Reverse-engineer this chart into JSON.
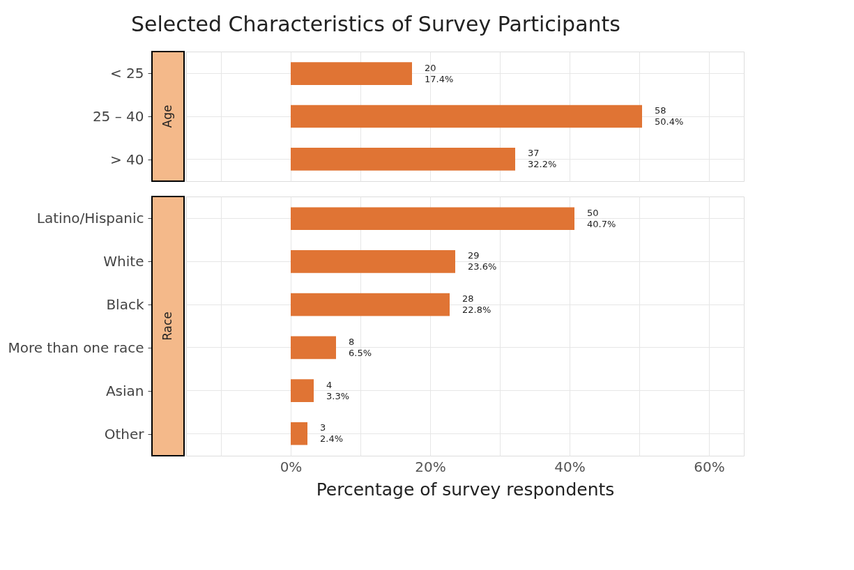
{
  "chart_data": [
    {
      "type": "bar",
      "orientation": "horizontal",
      "title": "Selected Characteristics of Survey Participants",
      "ylabel": "Age",
      "categories": [
        "< 25",
        "25 – 40",
        "> 40"
      ],
      "values": [
        17.4,
        50.4,
        32.2
      ],
      "color": "#e07434",
      "value_labels": [
        "20\n17.4%",
        "58\n50.4%",
        "37\n32.2%"
      ],
      "xlim": [
        -15,
        65
      ],
      "xticks": [
        -10,
        0,
        10,
        20,
        30,
        40,
        50,
        60
      ],
      "tick_labels": "y",
      "grid": true
    },
    {
      "type": "bar",
      "orientation": "horizontal",
      "ylabel": "Race",
      "xlabel": "Percentage of survey respondents",
      "categories": [
        "Latino/Hispanic",
        "White",
        "Black",
        "More than one race",
        "Asian",
        "Other"
      ],
      "values": [
        40.7,
        23.6,
        22.8,
        6.5,
        3.3,
        2.4
      ],
      "color": "#e07434",
      "value_labels": [
        "50\n40.7%",
        "29\n23.6%",
        "28\n22.8%",
        "8\n6.5%",
        "4\n3.3%",
        "3\n2.4%"
      ],
      "xlim": [
        -15,
        65
      ],
      "xticks": [
        {
          "value": -10,
          "label": null
        },
        {
          "value": 0,
          "label": "0%"
        },
        {
          "value": 10,
          "label": null
        },
        {
          "value": 20,
          "label": "20%"
        },
        {
          "value": 30,
          "label": null
        },
        {
          "value": 40,
          "label": "40%"
        },
        {
          "value": 50,
          "label": null
        },
        {
          "value": 60,
          "label": "60%"
        }
      ],
      "grid": true
    }
  ]
}
